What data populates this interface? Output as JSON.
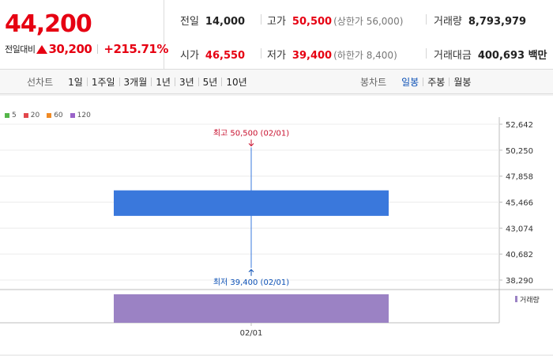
{
  "quote": {
    "price": "44,200",
    "change_label": "전일대비",
    "change_value": "30,200",
    "change_pct": "+215.71%",
    "prev_close_label": "전일",
    "prev_close": "14,000",
    "high_label": "고가",
    "high": "50,500",
    "upper_limit": "(상한가 56,000)",
    "volume_label": "거래량",
    "volume": "8,793,979",
    "open_label": "시가",
    "open": "46,550",
    "low_label": "저가",
    "low": "39,400",
    "lower_limit": "(하한가 8,400)",
    "amount_label": "거래대금",
    "amount": "400,693 백만"
  },
  "colors": {
    "up": "#e60012",
    "candle": "#3a78dc",
    "volume": "#9b82c4",
    "active_tab": "#0a4fb5"
  },
  "line_chart_tabs": {
    "caption": "선차트",
    "items": [
      "1일",
      "1주일",
      "3개월",
      "1년",
      "3년",
      "5년",
      "10년"
    ]
  },
  "candle_tabs": {
    "caption": "봉차트",
    "items": [
      "일봉",
      "주봉",
      "월봉"
    ],
    "active": "일봉"
  },
  "legend": [
    {
      "label": "5",
      "color": "#55b64a"
    },
    {
      "label": "20",
      "color": "#e2474c"
    },
    {
      "label": "60",
      "color": "#f08a24"
    },
    {
      "label": "120",
      "color": "#9a63c9"
    }
  ],
  "chart_data": {
    "type": "candlestick",
    "x": [
      "02/01"
    ],
    "open": [
      46550
    ],
    "high": [
      50500
    ],
    "low": [
      39400
    ],
    "close": [
      44200
    ],
    "volume": [
      8793979
    ],
    "y_ticks": [
      "52,642",
      "50,250",
      "47,858",
      "45,466",
      "43,074",
      "40,682",
      "38,290"
    ],
    "y_tick_values": [
      52642,
      50250,
      47858,
      45466,
      43074,
      40682,
      38290
    ],
    "ylim": [
      38290,
      52642
    ],
    "high_annotation": "최고 50,500 (02/01)",
    "low_annotation": "최저 39,400 (02/01)",
    "volume_legend": "거래량",
    "grid": true
  }
}
